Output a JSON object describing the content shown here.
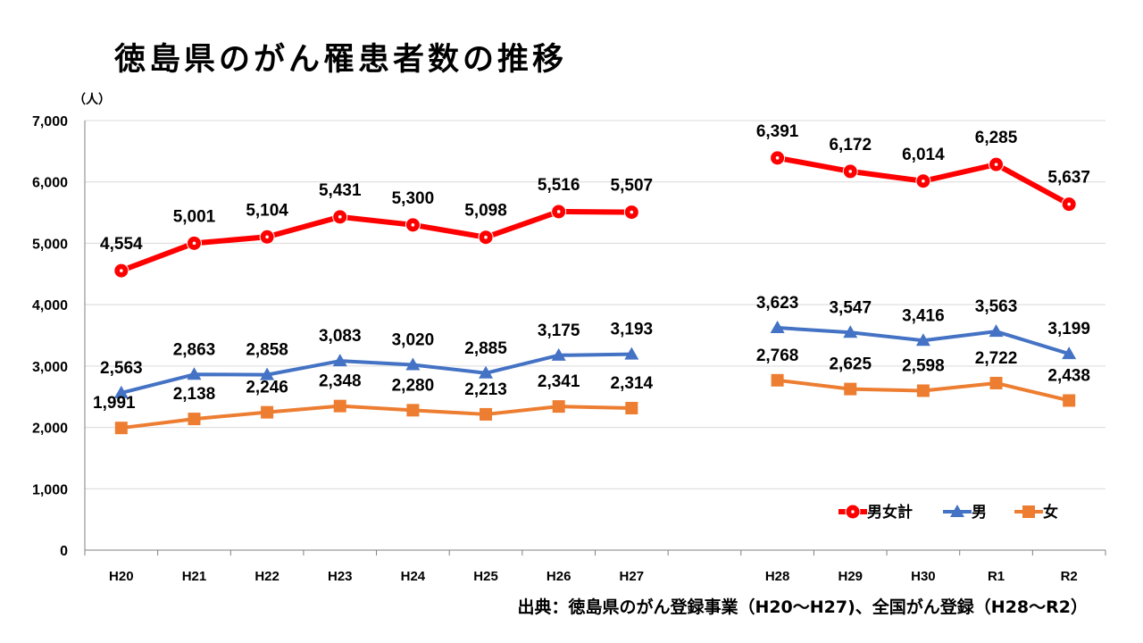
{
  "title": "徳島県のがん罹患者数の推移",
  "source": "出典：徳島県のがん登録事業（H20～H27)、全国がん登録（H28～R2）",
  "colors": {
    "total": "#ff0000",
    "male": "#4472c4",
    "female": "#ed7d31",
    "grid": "#d9d9d9",
    "axis": "#808080"
  },
  "chart_data": {
    "type": "line",
    "title": "徳島県のがん罹患者数の推移",
    "unit_label": "（人）",
    "xlabel": "",
    "ylabel": "（人）",
    "ylim": [
      0,
      7000
    ],
    "yticks": [
      "0",
      "1,000",
      "2,000",
      "3,000",
      "4,000",
      "5,000",
      "6,000",
      "7,000"
    ],
    "categories": [
      "H20",
      "H21",
      "H22",
      "H23",
      "H24",
      "H25",
      "H26",
      "H27",
      "",
      "H28",
      "H29",
      "H30",
      "R1",
      "R2"
    ],
    "grid": true,
    "legend_position": "bottom-right",
    "series": [
      {
        "name": "男女計",
        "color_key": "total",
        "marker": "circle",
        "values": [
          4554,
          5001,
          5104,
          5431,
          5300,
          5098,
          5516,
          5507,
          null,
          6391,
          6172,
          6014,
          6285,
          5637
        ],
        "labels": [
          "4,554",
          "5,001",
          "5,104",
          "5,431",
          "5,300",
          "5,098",
          "5,516",
          "5,507",
          "",
          "6,391",
          "6,172",
          "6,014",
          "6,285",
          "5,637"
        ]
      },
      {
        "name": "男",
        "color_key": "male",
        "marker": "triangle",
        "values": [
          2563,
          2863,
          2858,
          3083,
          3020,
          2885,
          3175,
          3193,
          null,
          3623,
          3547,
          3416,
          3563,
          3199
        ],
        "labels": [
          "2,563",
          "2,863",
          "2,858",
          "3,083",
          "3,020",
          "2,885",
          "3,175",
          "3,193",
          "",
          "3,623",
          "3,547",
          "3,416",
          "3,563",
          "3,199"
        ]
      },
      {
        "name": "女",
        "color_key": "female",
        "marker": "square",
        "values": [
          1991,
          2138,
          2246,
          2348,
          2280,
          2213,
          2341,
          2314,
          null,
          2768,
          2625,
          2598,
          2722,
          2438
        ],
        "labels": [
          "1,991",
          "2,138",
          "2,246",
          "2,348",
          "2,280",
          "2,213",
          "2,341",
          "2,314",
          "",
          "2,768",
          "2,625",
          "2,598",
          "2,722",
          "2,438"
        ]
      }
    ]
  }
}
